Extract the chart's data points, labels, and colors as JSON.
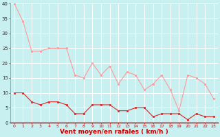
{
  "title": "",
  "xlabel": "Vent moyen/en rafales ( km/h )",
  "background_color": "#c8f0f0",
  "grid_color": "#ffffff",
  "line1_color": "#dd2222",
  "line2_color": "#ff9999",
  "x": [
    0,
    1,
    2,
    3,
    4,
    5,
    6,
    7,
    8,
    9,
    10,
    11,
    12,
    13,
    14,
    15,
    16,
    17,
    18,
    19,
    20,
    21,
    22,
    23
  ],
  "y_mean": [
    10,
    10,
    7,
    6,
    7,
    7,
    6,
    3,
    3,
    6,
    6,
    6,
    4,
    4,
    5,
    5,
    2,
    3,
    3,
    3,
    1,
    3,
    2,
    2
  ],
  "y_gust": [
    40,
    34,
    24,
    24,
    25,
    25,
    25,
    16,
    15,
    20,
    16,
    19,
    13,
    17,
    16,
    11,
    13,
    16,
    11,
    4,
    16,
    15,
    13,
    8
  ],
  "ylim": [
    0,
    40
  ],
  "yticks": [
    0,
    5,
    10,
    15,
    20,
    25,
    30,
    35,
    40
  ],
  "xticks": [
    0,
    1,
    2,
    3,
    4,
    5,
    6,
    7,
    8,
    9,
    10,
    11,
    12,
    13,
    14,
    15,
    16,
    17,
    18,
    19,
    20,
    21,
    22,
    23
  ]
}
